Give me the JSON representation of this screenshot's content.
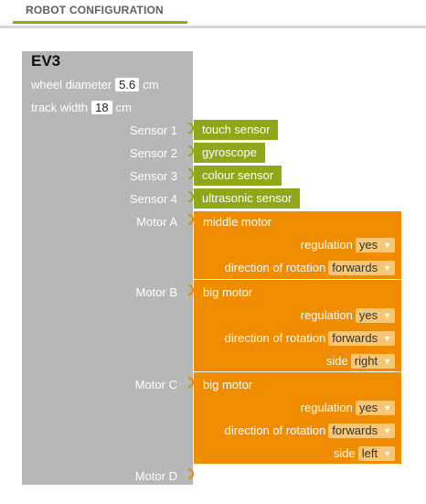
{
  "tab": {
    "label": "ROBOT CONFIGURATION"
  },
  "brick": {
    "title": "EV3",
    "wheel_diameter": {
      "label": "wheel diameter",
      "value": "5.6",
      "unit": "cm"
    },
    "track_width": {
      "label": "track width",
      "value": "18",
      "unit": "cm"
    }
  },
  "sensors": [
    {
      "port": "Sensor 1",
      "type": "touch sensor"
    },
    {
      "port": "Sensor 2",
      "type": "gyroscope"
    },
    {
      "port": "Sensor 3",
      "type": "colour sensor"
    },
    {
      "port": "Sensor 4",
      "type": "ultrasonic sensor"
    }
  ],
  "motors": [
    {
      "port": "Motor A",
      "type": "middle motor",
      "regulation_label": "regulation",
      "regulation": "yes",
      "direction_label": "direction of rotation",
      "direction": "forwards"
    },
    {
      "port": "Motor B",
      "type": "big motor",
      "regulation_label": "regulation",
      "regulation": "yes",
      "direction_label": "direction of rotation",
      "direction": "forwards",
      "side_label": "side",
      "side": "right"
    },
    {
      "port": "Motor C",
      "type": "big motor",
      "regulation_label": "regulation",
      "regulation": "yes",
      "direction_label": "direction of rotation",
      "direction": "forwards",
      "side_label": "side",
      "side": "left"
    },
    {
      "port": "Motor D"
    }
  ],
  "dropdown_caret": "▼",
  "colors": {
    "brick": "#b7b7b7",
    "sensor": "#8fa81a",
    "motor": "#f08c00",
    "tab_accent": "#8fa81a"
  }
}
